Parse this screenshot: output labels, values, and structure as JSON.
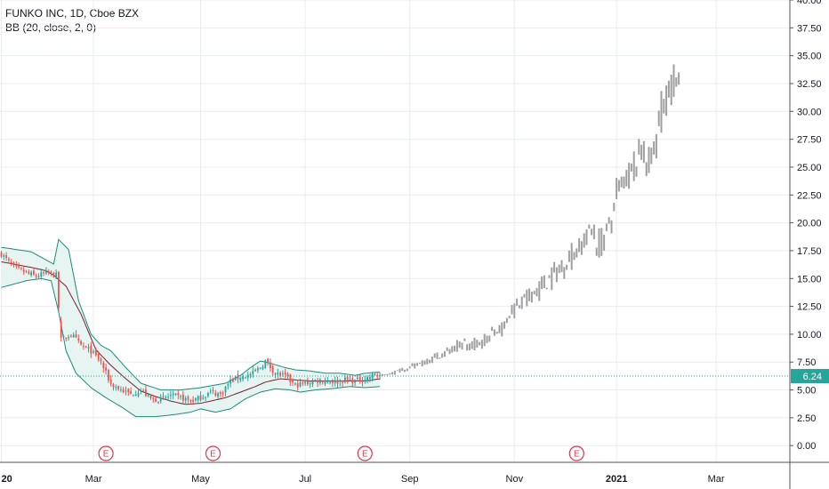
{
  "header": {
    "title": "FUNKO INC, 1D, Cboe BZX",
    "indicator": "BB (20, close, 2, 0)"
  },
  "colors": {
    "up": "#26a69a",
    "down": "#ef5350",
    "projection": "#9e9e9e",
    "band": "#1b8a7a",
    "band_fill": "#e6f4f2",
    "basis": "#7a1d2e",
    "price_line": "#26a69a",
    "grid": "#e8ecf1",
    "earnings": "#e0364c"
  },
  "chart_data": {
    "type": "ohlc-projection",
    "y_axis": {
      "ylim": [
        -1.5,
        40
      ],
      "ticks": [
        "0.00",
        "2.50",
        "5.00",
        "7.50",
        "10.00",
        "12.50",
        "15.00",
        "17.50",
        "20.00",
        "22.50",
        "25.00",
        "27.50",
        "30.00",
        "32.50",
        "35.00",
        "37.50",
        "40.00"
      ]
    },
    "x_axis": {
      "labels": [
        {
          "text": "20",
          "bar": 0,
          "bold": true
        },
        {
          "text": "Mar",
          "bar": 37
        },
        {
          "text": "May",
          "bar": 80
        },
        {
          "text": "Jul",
          "bar": 122
        },
        {
          "text": "Sep",
          "bar": 164
        },
        {
          "text": "Nov",
          "bar": 206
        },
        {
          "text": "2021",
          "bar": 247,
          "bold": true
        },
        {
          "text": "Mar",
          "bar": 287
        }
      ]
    },
    "current_price": "6.24",
    "current_price_value": 6.24,
    "earnings_markers": [
      {
        "label": "E",
        "bar": 42
      },
      {
        "label": "E",
        "bar": 85
      },
      {
        "label": "E",
        "bar": 146
      },
      {
        "label": "E",
        "bar": 231
      }
    ],
    "close_anchors": [
      [
        0,
        17.2
      ],
      [
        5,
        16.0
      ],
      [
        10,
        15.5
      ],
      [
        14,
        15.2
      ],
      [
        18,
        15.5
      ],
      [
        22,
        15.3
      ],
      [
        24,
        9.5
      ],
      [
        28,
        10.0
      ],
      [
        32,
        9.0
      ],
      [
        36,
        8.5
      ],
      [
        40,
        7.5
      ],
      [
        44,
        5.5
      ],
      [
        48,
        5.0
      ],
      [
        52,
        4.6
      ],
      [
        56,
        5.0
      ],
      [
        60,
        4.2
      ],
      [
        64,
        4.1
      ],
      [
        68,
        4.5
      ],
      [
        72,
        4.3
      ],
      [
        76,
        4.0
      ],
      [
        80,
        4.3
      ],
      [
        84,
        4.8
      ],
      [
        88,
        4.6
      ],
      [
        92,
        5.8
      ],
      [
        96,
        6.2
      ],
      [
        100,
        6.3
      ],
      [
        104,
        7.0
      ],
      [
        106,
        7.6
      ],
      [
        110,
        6.5
      ],
      [
        114,
        6.2
      ],
      [
        118,
        5.4
      ],
      [
        122,
        5.6
      ],
      [
        126,
        5.8
      ],
      [
        130,
        5.9
      ],
      [
        134,
        5.7
      ],
      [
        138,
        5.9
      ],
      [
        142,
        5.8
      ],
      [
        146,
        6.0
      ],
      [
        150,
        6.4
      ],
      [
        152,
        6.3
      ]
    ],
    "bb_upper": [
      [
        0,
        17.8
      ],
      [
        12,
        17.4
      ],
      [
        21,
        16.3
      ],
      [
        23,
        18.5
      ],
      [
        27,
        17.6
      ],
      [
        31,
        13.0
      ],
      [
        36,
        10.0
      ],
      [
        40,
        9.0
      ],
      [
        44,
        8.5
      ],
      [
        50,
        7.0
      ],
      [
        56,
        5.6
      ],
      [
        64,
        5.0
      ],
      [
        72,
        5.0
      ],
      [
        80,
        5.2
      ],
      [
        90,
        5.6
      ],
      [
        96,
        6.3
      ],
      [
        100,
        7.0
      ],
      [
        104,
        7.6
      ],
      [
        108,
        7.4
      ],
      [
        114,
        7.0
      ],
      [
        118,
        6.8
      ],
      [
        124,
        6.7
      ],
      [
        130,
        6.5
      ],
      [
        136,
        6.5
      ],
      [
        142,
        6.3
      ],
      [
        146,
        6.5
      ],
      [
        152,
        6.6
      ]
    ],
    "bb_basis": [
      [
        0,
        16.5
      ],
      [
        12,
        16.0
      ],
      [
        18,
        15.7
      ],
      [
        21,
        15.3
      ],
      [
        26,
        14.3
      ],
      [
        32,
        11.8
      ],
      [
        38,
        8.6
      ],
      [
        44,
        7.2
      ],
      [
        50,
        6.0
      ],
      [
        56,
        4.9
      ],
      [
        62,
        4.4
      ],
      [
        68,
        4.0
      ],
      [
        74,
        3.7
      ],
      [
        80,
        3.8
      ],
      [
        84,
        4.0
      ],
      [
        90,
        4.3
      ],
      [
        96,
        4.8
      ],
      [
        102,
        5.3
      ],
      [
        106,
        5.7
      ],
      [
        112,
        6.0
      ],
      [
        118,
        5.9
      ],
      [
        124,
        5.8
      ],
      [
        132,
        5.8
      ],
      [
        140,
        5.8
      ],
      [
        146,
        5.8
      ],
      [
        152,
        6.0
      ]
    ],
    "bb_lower": [
      [
        0,
        14.2
      ],
      [
        10,
        14.8
      ],
      [
        16,
        15.0
      ],
      [
        20,
        14.8
      ],
      [
        23,
        12.0
      ],
      [
        26,
        8.5
      ],
      [
        30,
        6.5
      ],
      [
        36,
        5.2
      ],
      [
        42,
        4.3
      ],
      [
        48,
        3.5
      ],
      [
        54,
        2.6
      ],
      [
        62,
        2.6
      ],
      [
        70,
        2.8
      ],
      [
        76,
        3.0
      ],
      [
        80,
        3.3
      ],
      [
        86,
        3.0
      ],
      [
        92,
        3.3
      ],
      [
        98,
        4.2
      ],
      [
        104,
        4.8
      ],
      [
        110,
        5.1
      ],
      [
        116,
        5.0
      ],
      [
        120,
        4.8
      ],
      [
        126,
        5.0
      ],
      [
        132,
        5.1
      ],
      [
        140,
        5.3
      ],
      [
        146,
        5.2
      ],
      [
        152,
        5.3
      ]
    ],
    "projection": {
      "start_bar": 153,
      "end_bar": 272,
      "start": 6.3,
      "end": 33.5
    }
  }
}
